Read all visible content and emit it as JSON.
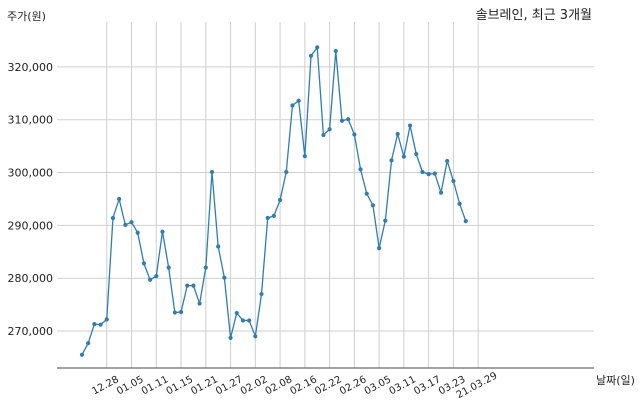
{
  "chart_data": {
    "type": "line",
    "title": "솔브레인, 최근 3개월",
    "ylabel": "주가(원)",
    "xlabel": "날짜(일)",
    "grid": true,
    "color": "#2e7db5",
    "ylim": [
      263000,
      328500
    ],
    "yticks": [
      270000,
      280000,
      290000,
      300000,
      310000,
      320000
    ],
    "ytick_labels": [
      "270,000",
      "280,000",
      "290,000",
      "300,000",
      "310,000",
      "320,000"
    ],
    "xtick_labels": [
      "12.28",
      "01.05",
      "01.11",
      "01.15",
      "01.21",
      "01.27",
      "02.02",
      "02.08",
      "02.16",
      "02.22",
      "02.26",
      "03.05",
      "03.11",
      "03.17",
      "03.23",
      "21.03.29"
    ],
    "xtick_index": [
      4,
      8,
      12,
      16,
      20,
      24,
      28,
      32,
      36,
      40,
      44,
      48,
      52,
      56,
      60,
      64
    ],
    "values": [
      265500,
      267700,
      271300,
      271200,
      272200,
      291400,
      295000,
      290100,
      290600,
      288600,
      282800,
      279700,
      280400,
      288800,
      282000,
      273500,
      273600,
      278600,
      278600,
      275200,
      282000,
      300100,
      286000,
      280100,
      268700,
      273400,
      272000,
      272000,
      269000,
      277000,
      291400,
      291800,
      294800,
      300100,
      312700,
      313600,
      303100,
      322100,
      323700,
      307100,
      308200,
      323000,
      309800,
      310100,
      307200,
      300600,
      296000,
      293800,
      285700,
      290900,
      302300,
      307300,
      303000,
      308900,
      303500,
      300100,
      299700,
      299800,
      296200,
      302200,
      298400,
      294100,
      290800
    ]
  }
}
